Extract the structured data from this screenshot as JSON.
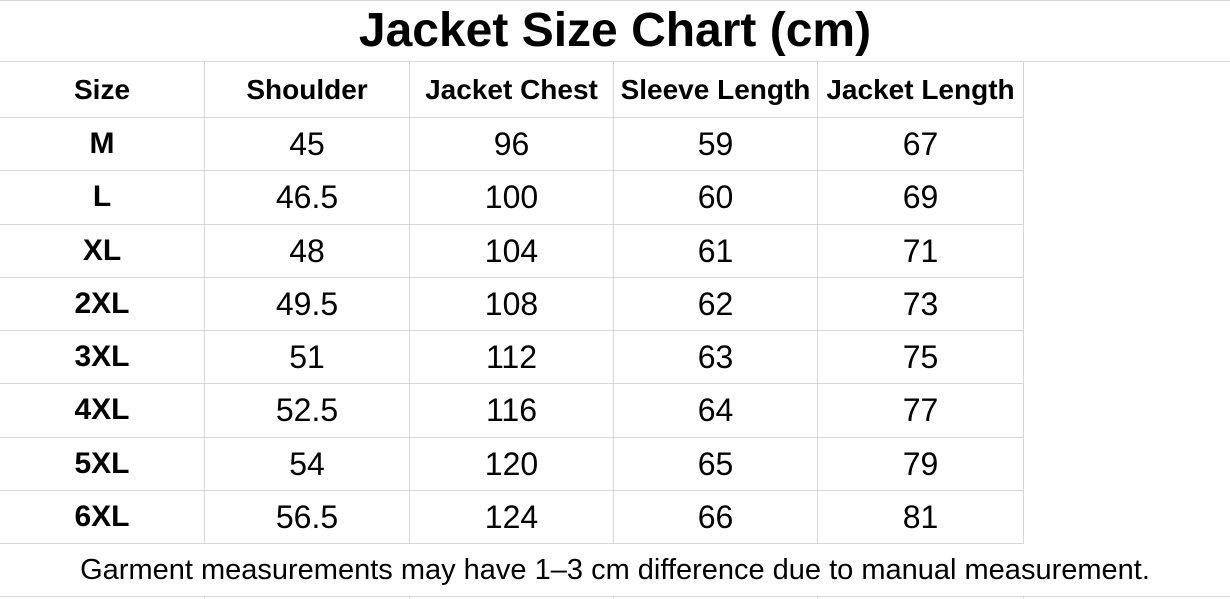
{
  "chart_data": {
    "type": "table",
    "title": "Jacket Size Chart (cm)",
    "columns": [
      "Size",
      "Shoulder",
      "Jacket Chest",
      "Sleeve Length",
      "Jacket Length"
    ],
    "rows": [
      [
        "M",
        45,
        96,
        59,
        67
      ],
      [
        "L",
        46.5,
        100,
        60,
        69
      ],
      [
        "XL",
        48,
        104,
        61,
        71
      ],
      [
        "2XL",
        49.5,
        108,
        62,
        73
      ],
      [
        "3XL",
        51,
        112,
        63,
        75
      ],
      [
        "4XL",
        52.5,
        116,
        64,
        77
      ],
      [
        "5XL",
        54,
        120,
        65,
        79
      ],
      [
        "6XL",
        56.5,
        124,
        66,
        81
      ]
    ],
    "note": "Garment measurements may have 1–3 cm difference due to manual measurement.",
    "layout_hints": {
      "grid": "on",
      "header_bold": true,
      "size_column_bold": true,
      "title_position": "top-center",
      "note_position": "bottom-center"
    }
  },
  "colors": {
    "background": "#ffffff",
    "text": "#000000",
    "gridline": "#d6d6d6"
  }
}
